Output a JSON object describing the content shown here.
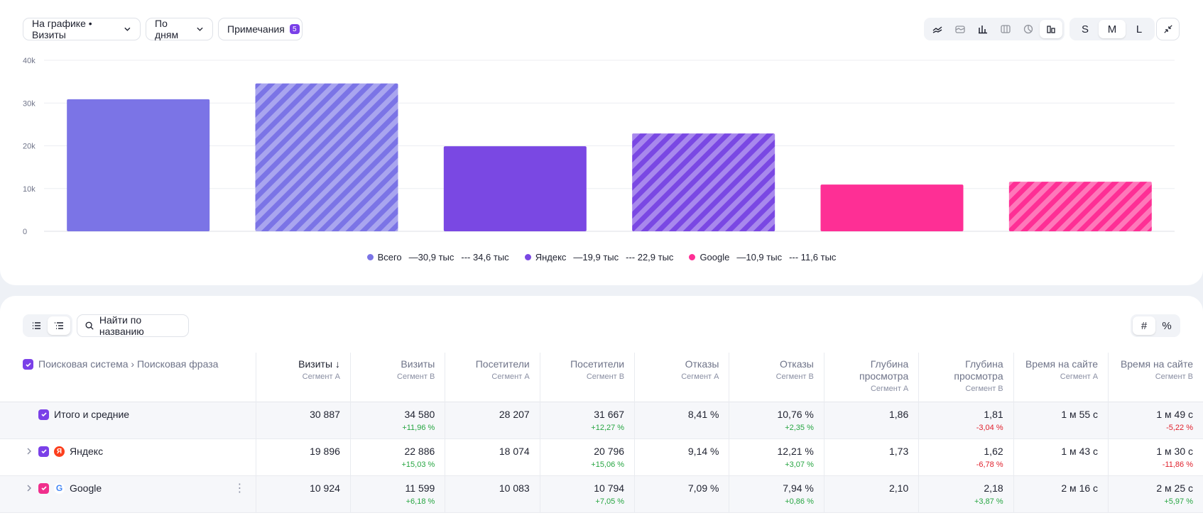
{
  "toolbar": {
    "chart_metric_label": "На графике • Визиты",
    "grouping_label": "По дням",
    "notes_label": "Примечания",
    "notes_count": "5",
    "sizes": [
      "S",
      "M",
      "L"
    ],
    "active_size": "M"
  },
  "chart_data": {
    "type": "bar",
    "yticks": [
      "0",
      "10k",
      "20k",
      "30k",
      "40k"
    ],
    "ylim": [
      0,
      40000
    ],
    "grid": true,
    "bars": [
      {
        "series": "Всего",
        "segment": "A",
        "value": 30887,
        "color": "#7b74e6",
        "hatched": false
      },
      {
        "series": "Всего",
        "segment": "B",
        "value": 34580,
        "color": "#7b74e6",
        "hatched": true
      },
      {
        "series": "Яндекс",
        "segment": "A",
        "value": 19896,
        "color": "#7a48e3",
        "hatched": false
      },
      {
        "series": "Яндекс",
        "segment": "B",
        "value": 22886,
        "color": "#7a48e3",
        "hatched": true
      },
      {
        "series": "Google",
        "segment": "A",
        "value": 10924,
        "color": "#fe2f95",
        "hatched": false
      },
      {
        "series": "Google",
        "segment": "B",
        "value": 11599,
        "color": "#fe2f95",
        "hatched": true
      }
    ],
    "legend": [
      {
        "name": "Всего",
        "color": "#7b74e6",
        "a": "—30,9 тыс",
        "b": "--- 34,6 тыс"
      },
      {
        "name": "Яндекс",
        "color": "#7a48e3",
        "a": "—19,9 тыс",
        "b": "--- 22,9 тыс"
      },
      {
        "name": "Google",
        "color": "#fe2f95",
        "a": "—10,9 тыс",
        "b": "--- 11,6 тыс"
      }
    ]
  },
  "table": {
    "search_placeholder": "Найти по названию",
    "mode_abs": "#",
    "mode_pct": "%",
    "dimension_header": "Поисковая система › Поисковая фраза",
    "columns": [
      {
        "title": "Визиты",
        "sub": "Сегмент А",
        "sorted": true
      },
      {
        "title": "Визиты",
        "sub": "Сегмент B",
        "sorted": false
      },
      {
        "title": "Посетители",
        "sub": "Сегмент А",
        "sorted": false
      },
      {
        "title": "Посетители",
        "sub": "Сегмент B",
        "sorted": false
      },
      {
        "title": "Отказы",
        "sub": "Сегмент А",
        "sorted": false
      },
      {
        "title": "Отказы",
        "sub": "Сегмент B",
        "sorted": false
      },
      {
        "title": "Глубина просмотра",
        "sub": "Сегмент А",
        "sorted": false
      },
      {
        "title": "Глубина просмотра",
        "sub": "Сегмент B",
        "sorted": false
      },
      {
        "title": "Время на сайте",
        "sub": "Сегмент А",
        "sorted": false
      },
      {
        "title": "Время на сайте",
        "sub": "Сегмент B",
        "sorted": false
      }
    ],
    "rows": [
      {
        "label": "Итого и средние",
        "kind": "total",
        "cells": [
          {
            "v": "30 887"
          },
          {
            "v": "34 580",
            "d": "+11,96 %",
            "s": "pos"
          },
          {
            "v": "28 207"
          },
          {
            "v": "31 667",
            "d": "+12,27 %",
            "s": "pos"
          },
          {
            "v": "8,41 %"
          },
          {
            "v": "10,76 %",
            "d": "+2,35 %",
            "s": "pos"
          },
          {
            "v": "1,86"
          },
          {
            "v": "1,81",
            "d": "-3,04 %",
            "s": "neg"
          },
          {
            "v": "1 м 55 с"
          },
          {
            "v": "1 м 49 с",
            "d": "-5,22 %",
            "s": "neg"
          }
        ]
      },
      {
        "label": "Яндекс",
        "kind": "yandex",
        "icon_letter": "Я",
        "cells": [
          {
            "v": "19 896"
          },
          {
            "v": "22 886",
            "d": "+15,03 %",
            "s": "pos"
          },
          {
            "v": "18 074"
          },
          {
            "v": "20 796",
            "d": "+15,06 %",
            "s": "pos"
          },
          {
            "v": "9,14 %"
          },
          {
            "v": "12,21 %",
            "d": "+3,07 %",
            "s": "pos"
          },
          {
            "v": "1,73"
          },
          {
            "v": "1,62",
            "d": "-6,78 %",
            "s": "neg"
          },
          {
            "v": "1 м 43 с"
          },
          {
            "v": "1 м 30 с",
            "d": "-11,86 %",
            "s": "neg"
          }
        ]
      },
      {
        "label": "Google",
        "kind": "google",
        "icon_letter": "G",
        "cells": [
          {
            "v": "10 924"
          },
          {
            "v": "11 599",
            "d": "+6,18 %",
            "s": "pos"
          },
          {
            "v": "10 083"
          },
          {
            "v": "10 794",
            "d": "+7,05 %",
            "s": "pos"
          },
          {
            "v": "7,09 %"
          },
          {
            "v": "7,94 %",
            "d": "+0,86 %",
            "s": "pos"
          },
          {
            "v": "2,10"
          },
          {
            "v": "2,18",
            "d": "+3,87 %",
            "s": "pos"
          },
          {
            "v": "2 м 16 с"
          },
          {
            "v": "2 м 25 с",
            "d": "+5,97 %",
            "s": "pos"
          }
        ]
      }
    ]
  }
}
